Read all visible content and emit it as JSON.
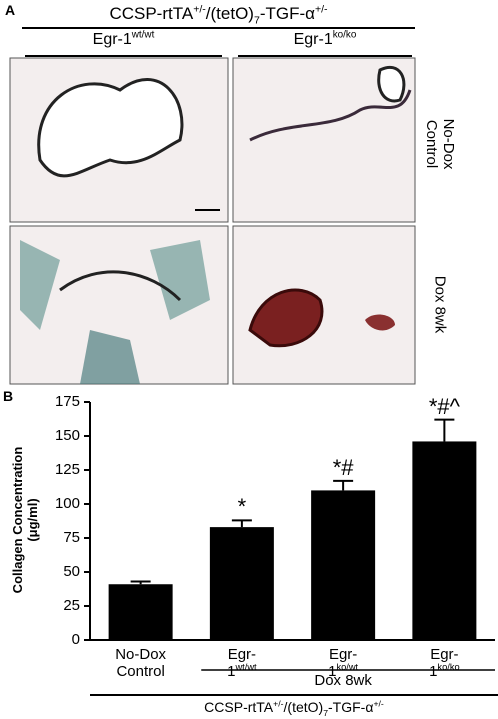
{
  "panel_a": {
    "label": "A",
    "title": [
      {
        "text": "CCSP-rtTA"
      },
      {
        "sup": "+/-"
      },
      {
        "text": "/(tetO)"
      },
      {
        "sub": "7"
      },
      {
        "text": "-TGF-α"
      },
      {
        "sup": "+/-"
      }
    ],
    "columns": [
      [
        {
          "text": "Egr-1"
        },
        {
          "sup": "wt/wt"
        }
      ],
      [
        {
          "text": "Egr-1"
        },
        {
          "sup": "ko/ko"
        }
      ]
    ],
    "rows": [
      "No-Dox Control",
      "Dox 8wk"
    ]
  },
  "chart_data": {
    "type": "bar",
    "label": "B",
    "y_label": "Collagen Concentration (μg/ml)",
    "categories": [
      [
        {
          "text": "No-Dox Control"
        }
      ],
      [
        {
          "text": "Egr-1"
        },
        {
          "sup": "wt/wt"
        }
      ],
      [
        {
          "text": "Egr-1"
        },
        {
          "sup": "ko/wt"
        }
      ],
      [
        {
          "text": "Egr-1"
        },
        {
          "sup": "ko/ko"
        }
      ]
    ],
    "values": [
      41,
      83,
      110,
      146
    ],
    "errors": [
      2,
      5,
      7,
      16
    ],
    "annotations": [
      null,
      "*",
      "*#",
      "*#^"
    ],
    "color": "#000000",
    "ylim": [
      0,
      175
    ],
    "yticks": [
      0,
      25,
      50,
      75,
      100,
      125,
      150,
      175
    ],
    "group_label": "Dox 8wk",
    "footer": [
      {
        "text": "CCSP-rtTA"
      },
      {
        "sup": "+/-"
      },
      {
        "text": "/(tetO)"
      },
      {
        "sub": "7"
      },
      {
        "text": "-TGF-α"
      },
      {
        "sup": "+/-"
      }
    ]
  }
}
